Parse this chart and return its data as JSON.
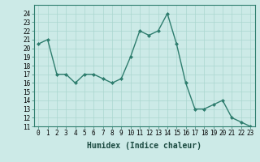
{
  "x": [
    0,
    1,
    2,
    3,
    4,
    5,
    6,
    7,
    8,
    9,
    10,
    11,
    12,
    13,
    14,
    15,
    16,
    17,
    18,
    19,
    20,
    21,
    22,
    23
  ],
  "y": [
    20.5,
    21,
    17,
    17,
    16,
    17,
    17,
    16.5,
    16,
    16.5,
    19,
    22,
    21.5,
    22,
    24,
    20.5,
    16,
    13,
    13,
    13.5,
    14,
    12,
    11.5,
    11
  ],
  "line_color": "#2e7d6e",
  "marker": "D",
  "marker_size": 2.0,
  "bg_color": "#cceae7",
  "grid_color": "#aad6d0",
  "xlabel": "Humidex (Indice chaleur)",
  "xlabel_fontsize": 7,
  "ylim": [
    11,
    25
  ],
  "xlim": [
    -0.5,
    23.5
  ],
  "yticks": [
    11,
    12,
    13,
    14,
    15,
    16,
    17,
    18,
    19,
    20,
    21,
    22,
    23,
    24
  ],
  "xticks": [
    0,
    1,
    2,
    3,
    4,
    5,
    6,
    7,
    8,
    9,
    10,
    11,
    12,
    13,
    14,
    15,
    16,
    17,
    18,
    19,
    20,
    21,
    22,
    23
  ],
  "tick_fontsize": 5.5,
  "line_width": 1.0
}
